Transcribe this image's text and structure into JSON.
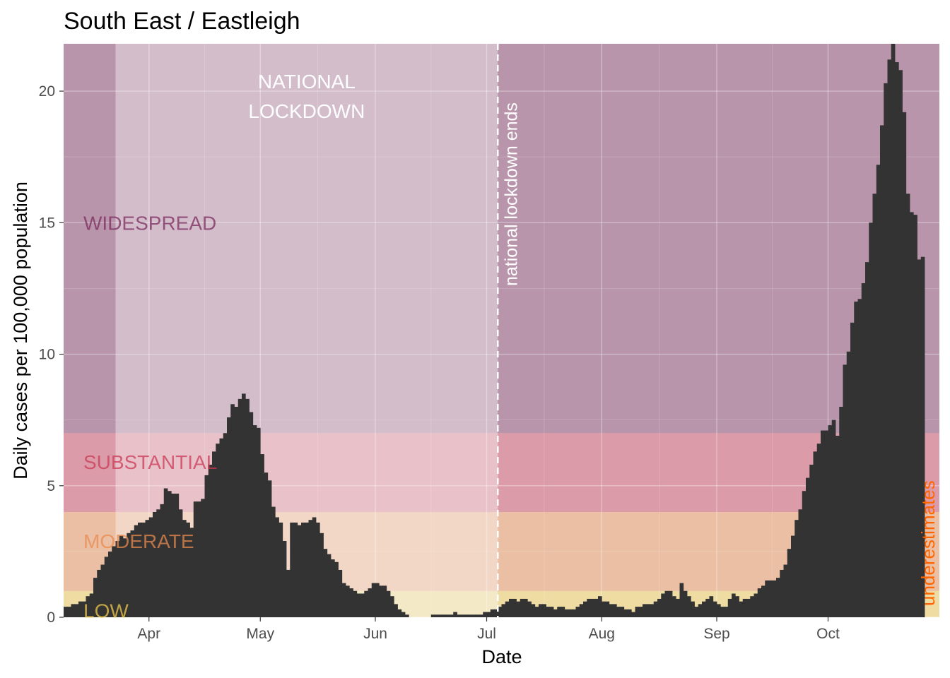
{
  "chart_data": {
    "type": "bar",
    "title": "South East / Eastleigh",
    "xlabel": "Date",
    "ylabel": "Daily cases per 100,000 population",
    "ylim": [
      0,
      21.8
    ],
    "xlim": [
      "2020-03-09",
      "2020-10-31"
    ],
    "y_ticks": [
      0,
      5,
      10,
      15,
      20
    ],
    "x_ticks": [
      {
        "date": "2020-04-01",
        "label": "Apr"
      },
      {
        "date": "2020-05-01",
        "label": "May"
      },
      {
        "date": "2020-06-01",
        "label": "Jun"
      },
      {
        "date": "2020-07-01",
        "label": "Jul"
      },
      {
        "date": "2020-08-01",
        "label": "Aug"
      },
      {
        "date": "2020-09-01",
        "label": "Sep"
      },
      {
        "date": "2020-10-01",
        "label": "Oct"
      }
    ],
    "grid": true,
    "bands": [
      {
        "label": "WIDESPREAD",
        "from": 7,
        "to": 21.8,
        "color": "#7b2c5e"
      },
      {
        "label": "SUBSTANTIAL",
        "from": 4,
        "to": 7,
        "color": "#c93a56"
      },
      {
        "label": "MODERATE",
        "from": 1,
        "to": 4,
        "color": "#e88a4e"
      },
      {
        "label": "LOW",
        "from": 0,
        "to": 1,
        "color": "#f2c94c"
      }
    ],
    "lockdown": {
      "label_line1": "NATIONAL",
      "label_line2": "LOCKDOWN",
      "from": "2020-03-23",
      "to": "2020-07-04"
    },
    "lockdown_end": {
      "date": "2020-07-04",
      "label": "national lockdown ends"
    },
    "underestimates_label": "underestimates",
    "series": [
      {
        "start_date": "2020-03-09",
        "values": [
          0.4,
          0.4,
          0.5,
          0.5,
          0.6,
          0.6,
          0.8,
          0.9,
          1.5,
          1.8,
          2.0,
          2.3,
          2.5,
          2.7,
          2.9,
          3.1,
          3.0,
          3.2,
          3.3,
          3.5,
          3.6,
          3.6,
          3.7,
          3.8,
          4.0,
          4.1,
          4.3,
          4.9,
          4.8,
          4.7,
          4.7,
          4.1,
          3.7,
          3.6,
          3.4,
          4.4,
          4.4,
          4.5,
          5.4,
          5.8,
          6.3,
          6.6,
          6.8,
          7.0,
          7.6,
          8.1,
          8.0,
          8.3,
          8.5,
          8.3,
          7.8,
          7.3,
          7.2,
          6.2,
          5.5,
          5.2,
          4.2,
          3.8,
          3.6,
          2.9,
          1.8,
          3.6,
          3.6,
          3.5,
          3.6,
          3.6,
          3.7,
          3.8,
          3.6,
          3.2,
          2.6,
          2.4,
          2.2,
          2.1,
          1.8,
          1.3,
          1.2,
          1.1,
          1.0,
          0.9,
          0.9,
          1.0,
          1.1,
          1.3,
          1.3,
          1.2,
          1.2,
          1.0,
          0.8,
          0.5,
          0.3,
          0.2,
          0.1,
          0.0,
          0.0,
          0.0,
          0.0,
          0.0,
          0.0,
          0.1,
          0.1,
          0.1,
          0.1,
          0.1,
          0.1,
          0.2,
          0.1,
          0.1,
          0.1,
          0.1,
          0.1,
          0.1,
          0.1,
          0.2,
          0.2,
          0.3,
          0.3,
          0.4,
          0.5,
          0.6,
          0.7,
          0.7,
          0.6,
          0.7,
          0.7,
          0.6,
          0.5,
          0.4,
          0.5,
          0.5,
          0.4,
          0.4,
          0.3,
          0.4,
          0.4,
          0.3,
          0.3,
          0.3,
          0.4,
          0.5,
          0.6,
          0.7,
          0.7,
          0.7,
          0.8,
          0.6,
          0.6,
          0.5,
          0.5,
          0.4,
          0.4,
          0.3,
          0.3,
          0.2,
          0.4,
          0.4,
          0.5,
          0.5,
          0.5,
          0.6,
          0.7,
          0.9,
          1.0,
          1.0,
          0.8,
          0.7,
          1.3,
          1.0,
          0.8,
          0.6,
          0.4,
          0.5,
          0.6,
          0.7,
          0.8,
          0.6,
          0.5,
          0.4,
          0.4,
          0.7,
          0.9,
          0.8,
          0.6,
          0.7,
          0.7,
          0.8,
          0.9,
          1.1,
          1.2,
          1.4,
          1.4,
          1.4,
          1.5,
          1.8,
          2.0,
          2.6,
          3.1,
          3.7,
          4.1,
          4.8,
          5.3,
          5.8,
          6.3,
          6.6,
          7.1,
          7.1,
          7.3,
          7.5,
          6.9,
          8.0,
          9.6,
          10.1,
          11.2,
          12.0,
          12.1,
          12.7,
          13.5,
          15.0,
          16.1,
          17.2,
          18.7,
          20.3,
          21.2,
          21.8,
          21.1,
          20.8,
          19.2,
          16.1,
          15.4,
          15.3,
          13.6,
          13.7
        ]
      }
    ]
  }
}
